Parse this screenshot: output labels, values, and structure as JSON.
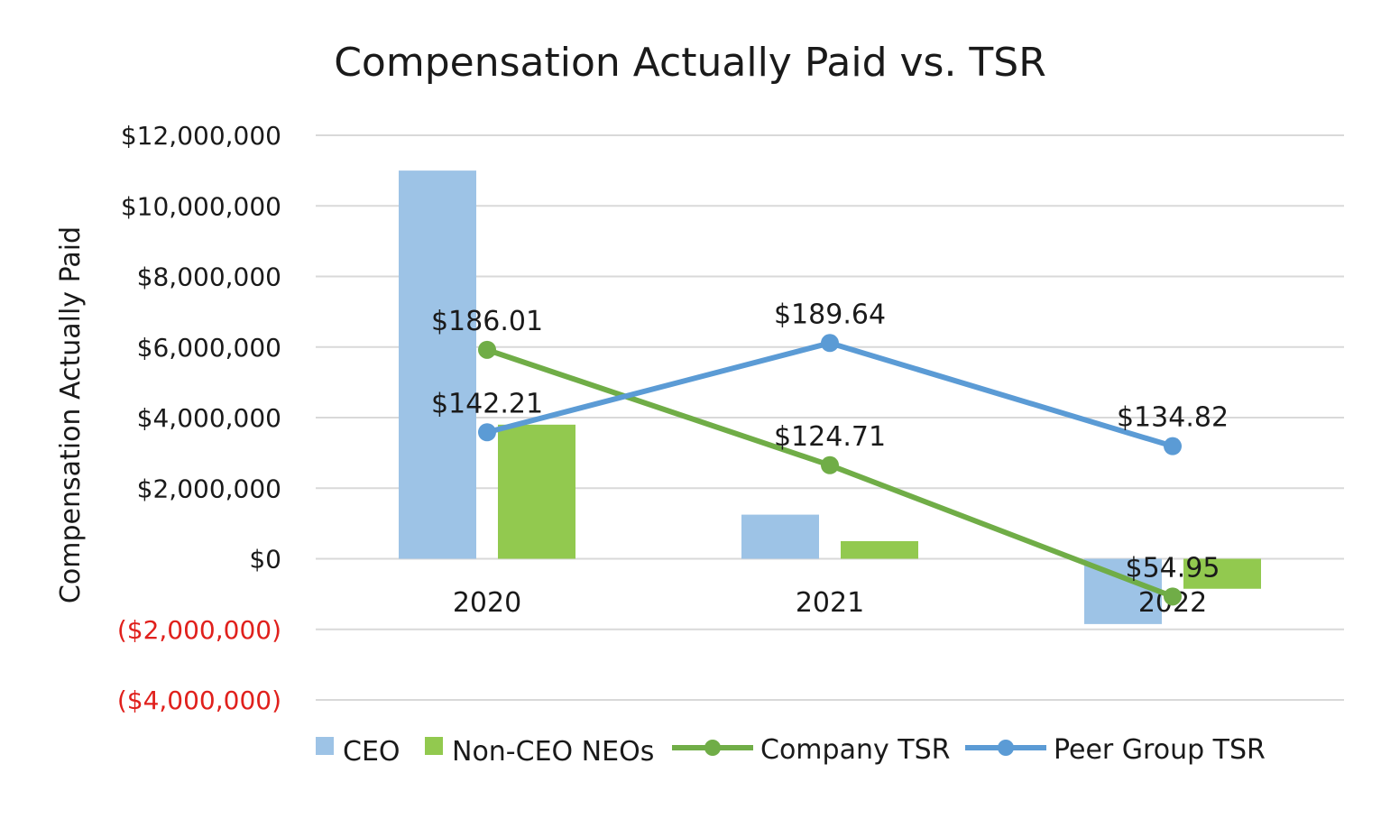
{
  "chart_data": {
    "type": "bar+line",
    "title": "Compensation Actually Paid vs. TSR",
    "ylabel": "Compensation Actually Paid",
    "xlabel": "",
    "categories": [
      "2020",
      "2021",
      "2022"
    ],
    "ylim": [
      -4000000,
      12000000
    ],
    "yticks": [
      12000000,
      10000000,
      8000000,
      6000000,
      4000000,
      2000000,
      0,
      -2000000,
      -4000000
    ],
    "ytick_labels": [
      "$12,000,000",
      "$10,000,000",
      "$8,000,000",
      "$6,000,000",
      "$4,000,000",
      "$2,000,000",
      "$0",
      "($2,000,000)",
      "($4,000,000)"
    ],
    "grid": true,
    "legend_position": "bottom",
    "bar_series": [
      {
        "name": "CEO",
        "color": "#9dc3e6",
        "values": [
          11000000,
          1250000,
          -1850000
        ]
      },
      {
        "name": "Non-CEO NEOs",
        "color": "#92c94f",
        "values": [
          3800000,
          500000,
          -850000
        ]
      }
    ],
    "line_series": [
      {
        "name": "Company TSR",
        "color": "#70ad47",
        "values": [
          186.01,
          124.71,
          54.95
        ],
        "labels": [
          "$186.01",
          "$124.71",
          "$54.95"
        ]
      },
      {
        "name": "Peer Group TSR",
        "color": "#5b9bd5",
        "values": [
          142.21,
          189.64,
          134.82
        ],
        "labels": [
          "$142.21",
          "$189.64",
          "$134.82"
        ]
      }
    ],
    "line_axis_range": [
      0,
      300
    ]
  }
}
